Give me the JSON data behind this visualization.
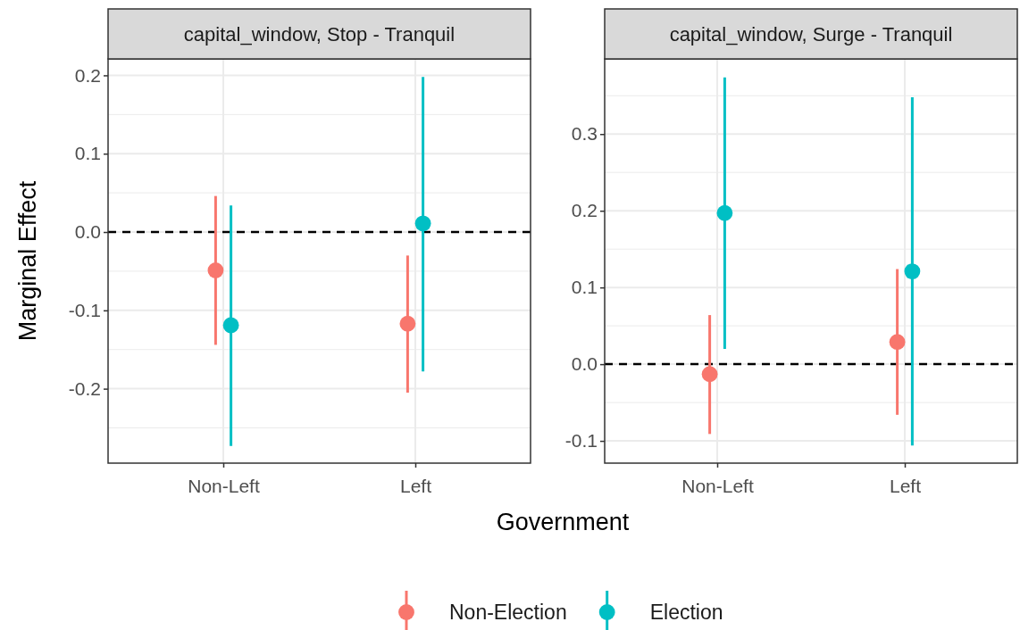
{
  "chart_data": [
    {
      "type": "scatter",
      "title": "capital_window, Stop - Tranquil",
      "xlabel": "Government",
      "ylabel": "Marginal Effect",
      "categories": [
        "Non-Left",
        "Left"
      ],
      "ylim": [
        -0.295,
        0.221
      ],
      "yticks": [
        {
          "value": -0.2,
          "label": "-0.2"
        },
        {
          "value": -0.1,
          "label": "-0.1"
        },
        {
          "value": 0,
          "label": "0.0"
        },
        {
          "value": 0.1,
          "label": "0.1"
        },
        {
          "value": 0.2,
          "label": "0.2"
        }
      ],
      "grid": true,
      "marker": "circle",
      "legend": "bottom",
      "ref_lines": [
        {
          "axis": "y",
          "value": 0,
          "color": "#000000",
          "line_style": "dashed"
        }
      ],
      "series": [
        {
          "name": "Non-Election",
          "color": "#f8766d",
          "values": [
            -0.049,
            -0.117
          ],
          "errors": [
            [
              -0.144,
              0.046
            ],
            [
              -0.205,
              -0.03
            ]
          ]
        },
        {
          "name": "Election",
          "color": "#00bfc4",
          "values": [
            -0.119,
            0.011
          ],
          "errors": [
            [
              -0.273,
              0.034
            ],
            [
              -0.178,
              0.198
            ]
          ]
        }
      ]
    },
    {
      "type": "scatter",
      "title": "capital_window, Surge - Tranquil",
      "categories": [
        "Non-Left",
        "Left"
      ],
      "ylim": [
        -0.129,
        0.398
      ],
      "yticks": [
        {
          "value": -0.1,
          "label": "-0.1"
        },
        {
          "value": 0,
          "label": "0.0"
        },
        {
          "value": 0.1,
          "label": "0.1"
        },
        {
          "value": 0.2,
          "label": "0.2"
        },
        {
          "value": 0.3,
          "label": "0.3"
        }
      ],
      "grid": true,
      "marker": "circle",
      "ref_lines": [
        {
          "axis": "y",
          "value": 0,
          "color": "#000000",
          "line_style": "dashed"
        }
      ],
      "series": [
        {
          "color": "#f8766d",
          "values": [
            -0.013,
            0.029
          ],
          "errors": [
            [
              -0.091,
              0.064
            ],
            [
              -0.066,
              0.124
            ]
          ]
        },
        {
          "color": "#00bfc4",
          "values": [
            0.197,
            0.121
          ],
          "errors": [
            [
              0.02,
              0.374
            ],
            [
              -0.106,
              0.348
            ]
          ]
        }
      ]
    }
  ]
}
